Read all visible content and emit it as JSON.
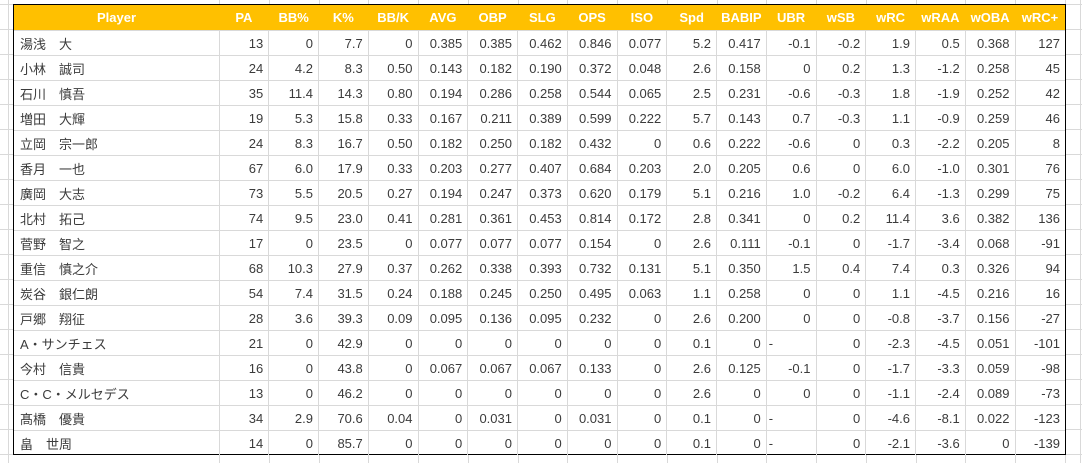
{
  "colors": {
    "header_bg": "#FFC000",
    "header_text": "#FFFFFF",
    "gridline": "#D9D9D9",
    "table_border": "#000000",
    "cell_text": "#3B3B3B"
  },
  "table": {
    "headers": [
      "Player",
      "PA",
      "BB%",
      "K%",
      "BB/K",
      "AVG",
      "OBP",
      "SLG",
      "OPS",
      "ISO",
      "Spd",
      "BABIP",
      "UBR",
      "wSB",
      "wRC",
      "wRAA",
      "wOBA",
      "wRC+"
    ],
    "rows": [
      [
        "湯浅　大",
        "13",
        "0",
        "7.7",
        "0",
        "0.385",
        "0.385",
        "0.462",
        "0.846",
        "0.077",
        "5.2",
        "0.417",
        "-0.1",
        "-0.2",
        "1.9",
        "0.5",
        "0.368",
        "127"
      ],
      [
        "小林　誠司",
        "24",
        "4.2",
        "8.3",
        "0.50",
        "0.143",
        "0.182",
        "0.190",
        "0.372",
        "0.048",
        "2.6",
        "0.158",
        "0",
        "0.2",
        "1.3",
        "-1.2",
        "0.258",
        "45"
      ],
      [
        "石川　慎吾",
        "35",
        "11.4",
        "14.3",
        "0.80",
        "0.194",
        "0.286",
        "0.258",
        "0.544",
        "0.065",
        "2.5",
        "0.231",
        "-0.6",
        "-0.3",
        "1.8",
        "-1.9",
        "0.252",
        "42"
      ],
      [
        "増田　大輝",
        "19",
        "5.3",
        "15.8",
        "0.33",
        "0.167",
        "0.211",
        "0.389",
        "0.599",
        "0.222",
        "5.7",
        "0.143",
        "0.7",
        "-0.3",
        "1.1",
        "-0.9",
        "0.259",
        "46"
      ],
      [
        "立岡　宗一郎",
        "24",
        "8.3",
        "16.7",
        "0.50",
        "0.182",
        "0.250",
        "0.182",
        "0.432",
        "0",
        "0.6",
        "0.222",
        "-0.6",
        "0",
        "0.3",
        "-2.2",
        "0.205",
        "8"
      ],
      [
        "香月　一也",
        "67",
        "6.0",
        "17.9",
        "0.33",
        "0.203",
        "0.277",
        "0.407",
        "0.684",
        "0.203",
        "2.0",
        "0.205",
        "0.6",
        "0",
        "6.0",
        "-1.0",
        "0.301",
        "76"
      ],
      [
        "廣岡　大志",
        "73",
        "5.5",
        "20.5",
        "0.27",
        "0.194",
        "0.247",
        "0.373",
        "0.620",
        "0.179",
        "5.1",
        "0.216",
        "1.0",
        "-0.2",
        "6.4",
        "-1.3",
        "0.299",
        "75"
      ],
      [
        "北村　拓己",
        "74",
        "9.5",
        "23.0",
        "0.41",
        "0.281",
        "0.361",
        "0.453",
        "0.814",
        "0.172",
        "2.8",
        "0.341",
        "0",
        "0.2",
        "11.4",
        "3.6",
        "0.382",
        "136"
      ],
      [
        "菅野　智之",
        "17",
        "0",
        "23.5",
        "0",
        "0.077",
        "0.077",
        "0.077",
        "0.154",
        "0",
        "2.6",
        "0.111",
        "-0.1",
        "0",
        "-1.7",
        "-3.4",
        "0.068",
        "-91"
      ],
      [
        "重信　慎之介",
        "68",
        "10.3",
        "27.9",
        "0.37",
        "0.262",
        "0.338",
        "0.393",
        "0.732",
        "0.131",
        "5.1",
        "0.350",
        "1.5",
        "0.4",
        "7.4",
        "0.3",
        "0.326",
        "94"
      ],
      [
        "炭谷　銀仁朗",
        "54",
        "7.4",
        "31.5",
        "0.24",
        "0.188",
        "0.245",
        "0.250",
        "0.495",
        "0.063",
        "1.1",
        "0.258",
        "0",
        "0",
        "1.1",
        "-4.5",
        "0.216",
        "16"
      ],
      [
        "戸郷　翔征",
        "28",
        "3.6",
        "39.3",
        "0.09",
        "0.095",
        "0.136",
        "0.095",
        "0.232",
        "0",
        "2.6",
        "0.200",
        "0",
        "0",
        "-0.8",
        "-3.7",
        "0.156",
        "-27"
      ],
      [
        "A・サンチェス",
        "21",
        "0",
        "42.9",
        "0",
        "0",
        "0",
        "0",
        "0",
        "0",
        "0.1",
        "0",
        "-",
        "0",
        "-2.3",
        "-4.5",
        "0.051",
        "-101"
      ],
      [
        "今村　信貴",
        "16",
        "0",
        "43.8",
        "0",
        "0.067",
        "0.067",
        "0.067",
        "0.133",
        "0",
        "2.6",
        "0.125",
        "-0.1",
        "0",
        "-1.7",
        "-3.3",
        "0.059",
        "-98"
      ],
      [
        "C・C・メルセデス",
        "13",
        "0",
        "46.2",
        "0",
        "0",
        "0",
        "0",
        "0",
        "0",
        "2.6",
        "0",
        "0",
        "0",
        "-1.1",
        "-2.4",
        "0.089",
        "-73"
      ],
      [
        "髙橋　優貴",
        "34",
        "2.9",
        "70.6",
        "0.04",
        "0",
        "0.031",
        "0",
        "0.031",
        "0",
        "0.1",
        "0",
        "-",
        "0",
        "-4.6",
        "-8.1",
        "0.022",
        "-123"
      ],
      [
        "畠　世周",
        "14",
        "0",
        "85.7",
        "0",
        "0",
        "0",
        "0",
        "0",
        "0",
        "0.1",
        "0",
        "-",
        "0",
        "-2.1",
        "-3.6",
        "0",
        "-139"
      ]
    ]
  }
}
